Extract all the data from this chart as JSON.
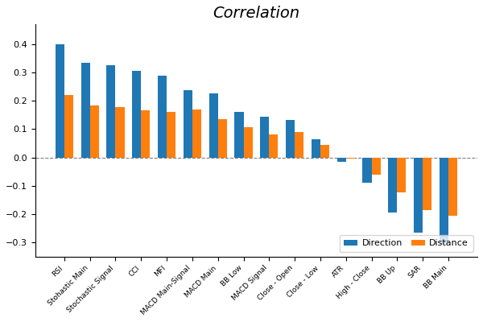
{
  "title": "Correlation",
  "categories": [
    "RSI",
    "Stohastic Main",
    "Stochastic Signal",
    "CCI",
    "MFI",
    "MACD Main-Signal",
    "MACD Main",
    "BB Low",
    "MACD Signal",
    "Close - Open",
    "Close - Low",
    "ATR",
    "High - Close",
    "BB Up",
    "SAR",
    "BB Main"
  ],
  "direction": [
    0.4,
    0.335,
    0.325,
    0.305,
    0.29,
    0.238,
    0.225,
    0.16,
    0.145,
    0.132,
    0.065,
    -0.015,
    -0.09,
    -0.195,
    -0.265,
    -0.305
  ],
  "distance": [
    0.22,
    0.183,
    0.178,
    0.167,
    0.16,
    0.168,
    0.135,
    0.108,
    0.08,
    0.09,
    0.044,
    -0.005,
    -0.062,
    -0.125,
    -0.185,
    -0.205
  ],
  "direction_color": "#1f77b4",
  "distance_color": "#ff7f0e",
  "ylim": [
    -0.35,
    0.47
  ],
  "legend_labels": [
    "Direction",
    "Distance"
  ],
  "figsize": [
    6.0,
    4.0
  ],
  "dpi": 100,
  "bar_width": 0.35,
  "xtick_fontsize": 6.5,
  "yticks": [
    -0.3,
    -0.2,
    -0.1,
    0.0,
    0.1,
    0.2,
    0.3,
    0.4
  ]
}
